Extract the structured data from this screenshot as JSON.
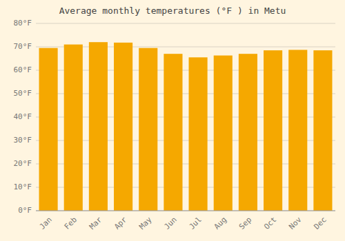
{
  "chart_data": {
    "type": "bar",
    "title": "Average monthly temperatures (°F ) in Metu",
    "categories": [
      "Jan",
      "Feb",
      "Mar",
      "Apr",
      "May",
      "Jun",
      "Jul",
      "Aug",
      "Sep",
      "Oct",
      "Nov",
      "Dec"
    ],
    "values": [
      69.5,
      71.0,
      72.0,
      71.8,
      69.5,
      67.0,
      65.5,
      66.3,
      67.0,
      68.5,
      68.7,
      68.5
    ],
    "color": "#F5A800",
    "ylim": [
      0,
      80
    ],
    "yticks": [
      {
        "value": 0,
        "label": "0°F"
      },
      {
        "value": 10,
        "label": "10°F"
      },
      {
        "value": 20,
        "label": "20°F"
      },
      {
        "value": 30,
        "label": "30°F"
      },
      {
        "value": 40,
        "label": "40°F"
      },
      {
        "value": 50,
        "label": "50°F"
      },
      {
        "value": 60,
        "label": "60°F"
      },
      {
        "value": 70,
        "label": "70°F"
      },
      {
        "value": 80,
        "label": "80°F"
      }
    ],
    "grid": true
  }
}
